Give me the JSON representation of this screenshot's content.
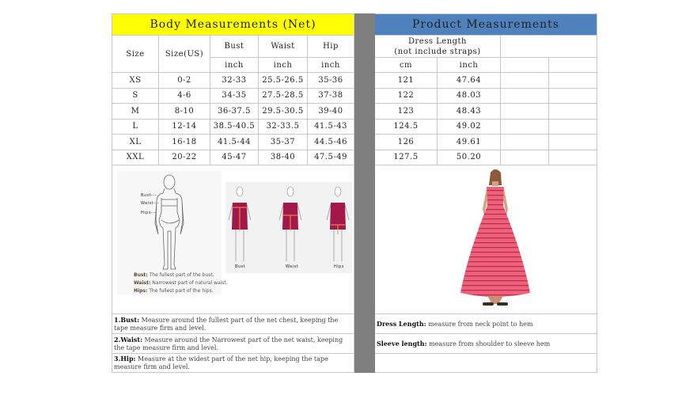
{
  "body_table": {
    "title": "Body Measurements (Net)",
    "headers": {
      "size": "Size",
      "size_us": "Size(US)",
      "bust": "Bust",
      "waist": "Waist",
      "hip": "Hip",
      "unit": "inch"
    },
    "rows": [
      [
        "XS",
        "0-2",
        "32-33",
        "25.5-26.5",
        "35-36"
      ],
      [
        "S",
        "4-6",
        "34-35",
        "27.5-28.5",
        "37-38"
      ],
      [
        "M",
        "8-10",
        "36-37.5",
        "29.5-30.5",
        "39-40"
      ],
      [
        "L",
        "12-14",
        "38.5-40.5",
        "32-33.5",
        "41.5-43"
      ],
      [
        "XL",
        "16-18",
        "41.5-44",
        "35-37",
        "44.5-46"
      ],
      [
        "XXL",
        "20-22",
        "45-47",
        "38-40",
        "47.5-49"
      ]
    ],
    "figure_labels": {
      "bust": "Bust---",
      "waist": "Waist---",
      "hips": "Hips---"
    },
    "figure_notes": [
      {
        "term": "Bust:",
        "text": "The fullest part of the bust."
      },
      {
        "term": "Waist:",
        "text": "Narrowest part of natural waist."
      },
      {
        "term": "Hips:",
        "text": "The fullest part of the hips."
      }
    ],
    "measure_captions": [
      "Bust",
      "Waist",
      "Hips"
    ],
    "notes": [
      {
        "term": "1.Bust:",
        "text": " Measure around the fullest part of the net chest, keeping the tape  measure firm and level."
      },
      {
        "term": "2.Waist:",
        "text": " Measure around the Narrowest part of the net waist, keeping the tape  measure firm and level."
      },
      {
        "term": "3.Hip:",
        "text": " Measure at the widest part of the net hip, keeping the tape measure firm and level."
      }
    ]
  },
  "product_table": {
    "title": "Product Measurements",
    "dress_length_line1": "Dress Length",
    "dress_length_line2": "(not include straps)",
    "unit_cm": "cm",
    "unit_inch": "inch",
    "rows": [
      [
        "121",
        "47.64"
      ],
      [
        "122",
        "48.03"
      ],
      [
        "123",
        "48.43"
      ],
      [
        "124.5",
        "49.02"
      ],
      [
        "126",
        "49.61"
      ],
      [
        "127.5",
        "50.20"
      ]
    ],
    "notes": [
      {
        "term": "Dress Length:",
        "text": " measure from neck point to hem"
      },
      {
        "term": "Sleeve length:",
        "text": " measure from shoulder to sleeve hem"
      }
    ]
  },
  "colors": {
    "body_header": "#ffff00",
    "product_header": "#4f81bd",
    "separator": "#7f7f7f",
    "dress": "#f0607a",
    "sample_dress": "#a3174a"
  }
}
